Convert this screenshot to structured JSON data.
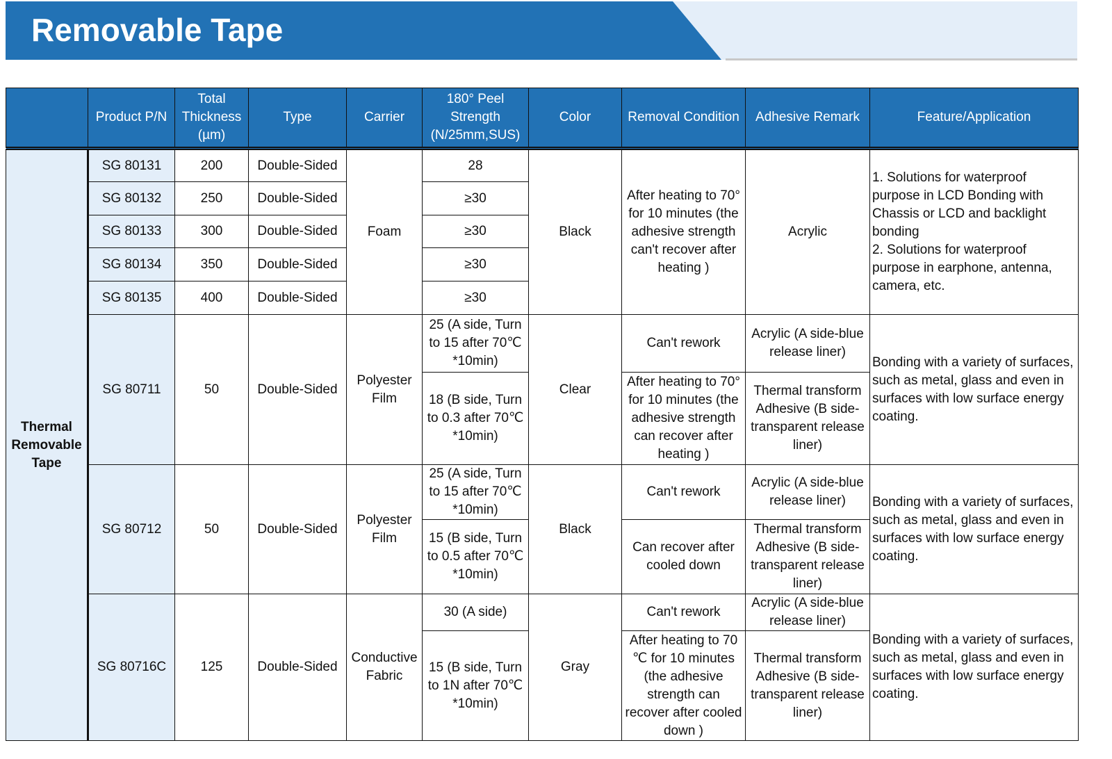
{
  "title": "Removable Tape",
  "colors": {
    "header": "#2272b5",
    "light": "#e3eef9"
  },
  "headers": [
    "",
    "Product P/N",
    "Total Thickness (µm)",
    "Type",
    "Carrier",
    "180° Peel Strength (N/25mm,SUS)",
    "Color",
    "Removal Condition",
    "Adhesive Remark",
    "Feature/Application"
  ],
  "group": "Thermal Removable Tape",
  "rows_a": [
    {
      "pn": "SG 80131",
      "thk": "200",
      "type": "Double-Sided",
      "peel": "28"
    },
    {
      "pn": "SG 80132",
      "thk": "250",
      "type": "Double-Sided",
      "peel": "≥30"
    },
    {
      "pn": "SG 80133",
      "thk": "300",
      "type": "Double-Sided",
      "peel": "≥30"
    },
    {
      "pn": "SG 80134",
      "thk": "350",
      "type": "Double-Sided",
      "peel": "≥30"
    },
    {
      "pn": "SG 80135",
      "thk": "400",
      "type": "Double-Sided",
      "peel": "≥30"
    }
  ],
  "a": {
    "carrier": "Foam",
    "color": "Black",
    "removal": "After heating to 70° for 10 minutes (the adhesive strength can't recover after heating )",
    "adhesive": "Acrylic",
    "feature": "1. Solutions for waterproof purpose in LCD Bonding with Chassis or LCD and backlight bonding\n2. Solutions for waterproof purpose in earphone, antenna, camera, etc."
  },
  "b": {
    "pn": "SG 80711",
    "thk": "50",
    "type": "Double-Sided",
    "carrier": "Polyester Film",
    "color": "Clear",
    "peel1": "25 (A side, Turn to 15 after 70℃ *10min)",
    "peel2": "18 (B side, Turn to 0.3 after 70℃ *10min)",
    "rem1": "Can't rework",
    "rem2": "After heating to 70° for 10 minutes (the adhesive strength can recover after heating )",
    "adh1": "Acrylic (A side-blue release liner)",
    "adh2": "Thermal transform Adhesive (B side-transparent release liner)",
    "feature": "Bonding with a variety of surfaces, such as metal, glass and even in surfaces with low surface energy coating."
  },
  "c": {
    "pn": "SG 80712",
    "thk": "50",
    "type": "Double-Sided",
    "carrier": "Polyester Film",
    "color": "Black",
    "peel1": "25 (A side, Turn to 15 after 70℃ *10min)",
    "peel2": "15 (B side, Turn to 0.5 after 70℃ *10min)",
    "rem1": "Can't rework",
    "rem2": "Can recover after cooled down",
    "adh1": "Acrylic (A side-blue release liner)",
    "adh2": "Thermal transform Adhesive (B side-transparent release liner)",
    "feature": "Bonding with a variety of surfaces, such as metal, glass and even in surfaces with low surface energy coating."
  },
  "d": {
    "pn": "SG 80716C",
    "thk": "125",
    "type": "Double-Sided",
    "carrier": "Conductive Fabric",
    "color": "Gray",
    "peel1": "30 (A side)",
    "peel2": "15 (B side, Turn to 1N after 70℃ *10min)",
    "rem1": "Can't rework",
    "rem2": "After heating to 70 ℃ for 10 minutes (the adhesive strength can recover after cooled down )",
    "adh1": "Acrylic (A side-blue release liner)",
    "adh2": "Thermal transform Adhesive (B side-transparent release liner)",
    "feature": "Bonding with a variety of surfaces, such as metal, glass and even in surfaces with low surface energy coating."
  }
}
